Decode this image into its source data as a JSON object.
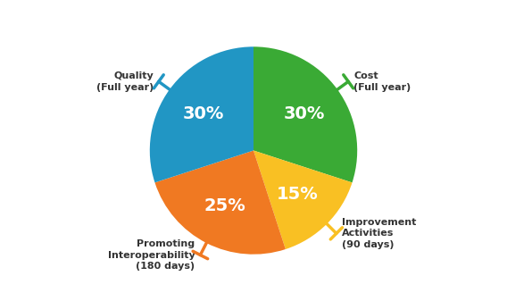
{
  "chart_data": {
    "type": "pie",
    "values": [
      30,
      15,
      25,
      30
    ],
    "value_labels": [
      "30%",
      "15%",
      "25%",
      "30%"
    ],
    "colors": [
      "#3aaa35",
      "#f9c023",
      "#f07922",
      "#2196c4"
    ],
    "annotations": [
      "Cost\n(Full year)",
      "Improvement\nActivities\n(90 days)",
      "Promoting\nInteroperability\n(180 days)",
      "Quality\n(Full year)"
    ]
  }
}
